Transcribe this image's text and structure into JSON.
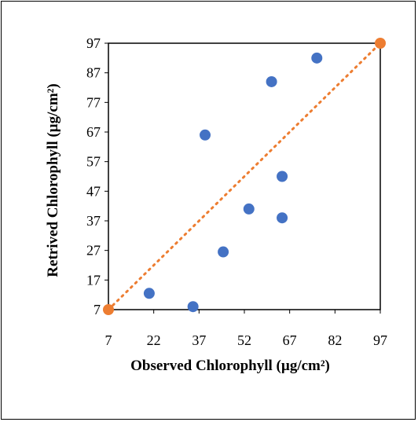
{
  "chart_data": {
    "type": "scatter",
    "title": "",
    "xlabel": "Observed Chlorophyll (µg/cm²)",
    "ylabel": "Retrived Chlorophyll (µg/cm²)",
    "xlim": [
      7,
      97
    ],
    "ylim": [
      7,
      97
    ],
    "x_ticks": [
      "7",
      "22",
      "37",
      "52",
      "67",
      "82",
      "97"
    ],
    "y_ticks": [
      "7",
      "17",
      "27",
      "37",
      "47",
      "57",
      "67",
      "77",
      "87",
      "97"
    ],
    "grid": false,
    "legend": "none",
    "series": [
      {
        "color": "#4472C4",
        "points": [
          {
            "x": 20.5,
            "y": 12.5
          },
          {
            "x": 35.0,
            "y": 8.0
          },
          {
            "x": 39.0,
            "y": 66.0
          },
          {
            "x": 45.0,
            "y": 26.5
          },
          {
            "x": 53.5,
            "y": 41.0
          },
          {
            "x": 61.0,
            "y": 84.0
          },
          {
            "x": 64.5,
            "y": 52.0
          },
          {
            "x": 64.5,
            "y": 38.0
          },
          {
            "x": 76.0,
            "y": 92.0
          }
        ]
      },
      {
        "color": "#ED7D31",
        "points": [
          {
            "x": 7,
            "y": 7
          },
          {
            "x": 97,
            "y": 97
          }
        ]
      }
    ],
    "reference_line": {
      "from": [
        7,
        7
      ],
      "to": [
        97,
        97
      ],
      "style": "dotted",
      "color": "#ED7D31"
    }
  }
}
